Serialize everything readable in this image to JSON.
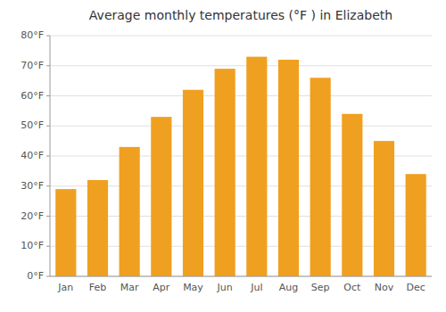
{
  "chart_data": {
    "type": "bar",
    "title": "Average monthly temperatures (°F ) in Elizabeth",
    "categories": [
      "Jan",
      "Feb",
      "Mar",
      "Apr",
      "May",
      "Jun",
      "Jul",
      "Aug",
      "Sep",
      "Oct",
      "Nov",
      "Dec"
    ],
    "values": [
      29,
      32,
      43,
      53,
      62,
      69,
      73,
      72,
      66,
      54,
      45,
      34
    ],
    "color": "#F0A020",
    "ylim": [
      0,
      80
    ],
    "yticks": [
      {
        "value": 0,
        "label": "0°F"
      },
      {
        "value": 10,
        "label": "10°F"
      },
      {
        "value": 20,
        "label": "20°F"
      },
      {
        "value": 30,
        "label": "30°F"
      },
      {
        "value": 40,
        "label": "40°F"
      },
      {
        "value": 50,
        "label": "50°F"
      },
      {
        "value": 60,
        "label": "60°F"
      },
      {
        "value": 70,
        "label": "70°F"
      },
      {
        "value": 80,
        "label": "80°F"
      }
    ],
    "grid": true
  }
}
